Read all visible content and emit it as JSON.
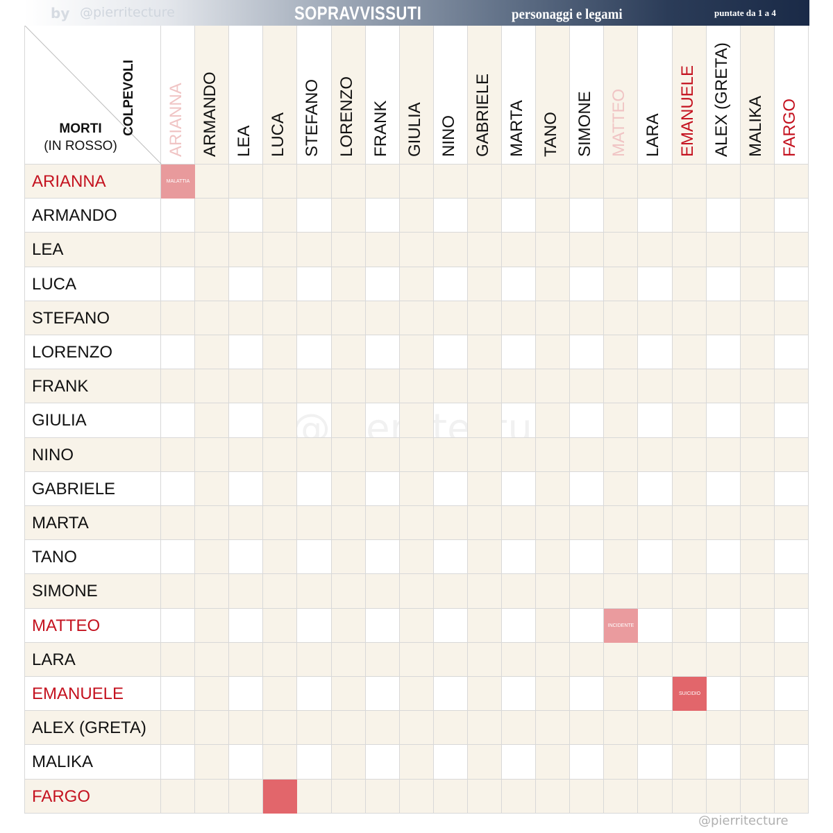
{
  "banner": {
    "by": "by",
    "handle": "@pierritecture",
    "title": "SOPRAVVISSUTI",
    "subtitle": "personaggi e legami",
    "episodes": "puntate da 1 a 4"
  },
  "corner": {
    "col_label": "COLPEVOLI",
    "row_label": "MORTI",
    "row_note": "(IN ROSSO)"
  },
  "characters": [
    {
      "name": "ARIANNA",
      "row_color": "red",
      "col_color": "faded"
    },
    {
      "name": "ARMANDO",
      "row_color": "black",
      "col_color": "black"
    },
    {
      "name": "LEA",
      "row_color": "black",
      "col_color": "black"
    },
    {
      "name": "LUCA",
      "row_color": "black",
      "col_color": "black"
    },
    {
      "name": "STEFANO",
      "row_color": "black",
      "col_color": "black"
    },
    {
      "name": "LORENZO",
      "row_color": "black",
      "col_color": "black"
    },
    {
      "name": "FRANK",
      "row_color": "black",
      "col_color": "black"
    },
    {
      "name": "GIULIA",
      "row_color": "black",
      "col_color": "black"
    },
    {
      "name": "NINO",
      "row_color": "black",
      "col_color": "black"
    },
    {
      "name": "GABRIELE",
      "row_color": "black",
      "col_color": "black"
    },
    {
      "name": "MARTA",
      "row_color": "black",
      "col_color": "black"
    },
    {
      "name": "TANO",
      "row_color": "black",
      "col_color": "black"
    },
    {
      "name": "SIMONE",
      "row_color": "black",
      "col_color": "black"
    },
    {
      "name": "MATTEO",
      "row_color": "red",
      "col_color": "faded"
    },
    {
      "name": "LARA",
      "row_color": "black",
      "col_color": "black"
    },
    {
      "name": "EMANUELE",
      "row_color": "red",
      "col_color": "red"
    },
    {
      "name": "ALEX (GRETA)",
      "row_color": "black",
      "col_color": "black"
    },
    {
      "name": "MALIKA",
      "row_color": "black",
      "col_color": "black"
    },
    {
      "name": "FARGO",
      "row_color": "red",
      "col_color": "red"
    }
  ],
  "links": [
    {
      "row": 0,
      "col": 0,
      "label": "MALATTIA",
      "color": "#e89a9c"
    },
    {
      "row": 13,
      "col": 13,
      "label": "INCIDENTE",
      "color": "#ea9b9e"
    },
    {
      "row": 15,
      "col": 15,
      "label": "SUICIDIO",
      "color": "#e2666b"
    },
    {
      "row": 18,
      "col": 3,
      "label": "",
      "color": "#e2666b"
    }
  ],
  "colors": {
    "red": "#c4121f",
    "faded": "#f0c4c4",
    "shade": "#f8f3e9",
    "grid": "#d8d8d8",
    "banner_dark": "#1a2a47"
  },
  "watermark": "@pierritecture",
  "footer": "@pierritecture"
}
